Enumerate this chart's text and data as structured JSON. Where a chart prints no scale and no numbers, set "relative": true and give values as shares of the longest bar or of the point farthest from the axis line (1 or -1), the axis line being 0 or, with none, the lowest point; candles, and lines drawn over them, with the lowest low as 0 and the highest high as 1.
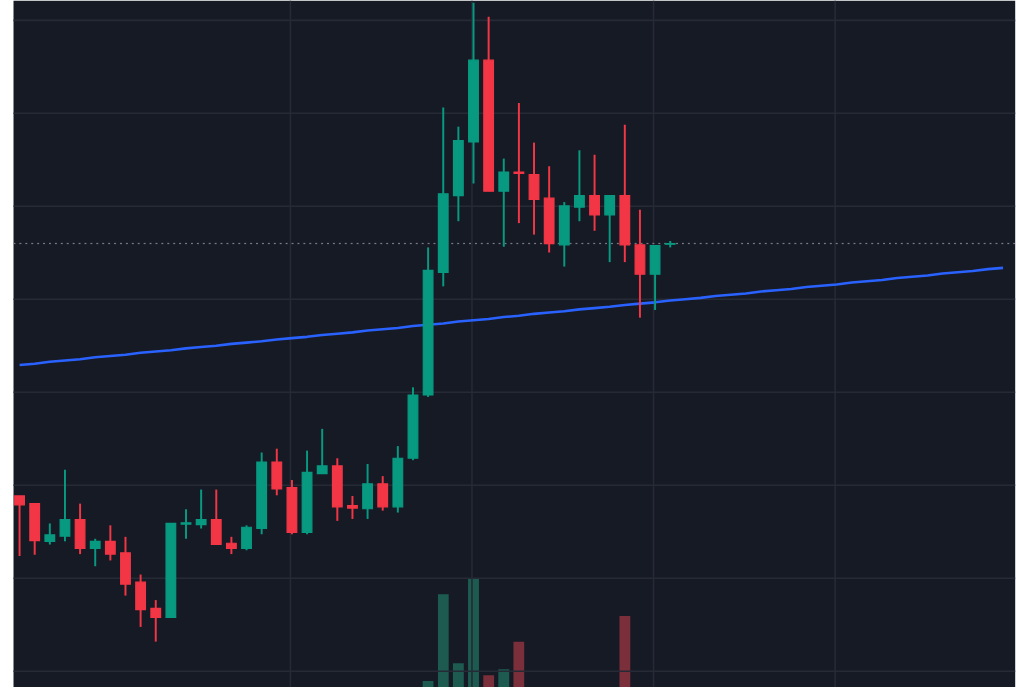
{
  "chart_data": [
    {
      "type": "candlestick",
      "relative": true,
      "grid": true,
      "tick_labels": false,
      "categories": [
        null,
        null,
        null,
        null,
        null,
        null,
        null,
        null,
        null,
        null,
        null,
        null,
        null,
        null,
        null,
        null,
        null,
        null,
        null,
        null,
        null,
        null,
        null,
        null,
        null,
        null,
        null,
        null,
        null,
        null,
        null,
        null,
        null,
        null,
        null,
        null,
        null,
        null,
        null,
        null,
        null,
        null,
        null,
        null,
        null,
        null,
        null,
        null,
        null,
        null,
        null,
        null,
        null,
        null,
        null,
        null,
        null,
        null,
        null,
        null,
        null,
        null,
        null,
        null,
        null,
        null
      ],
      "ohlc": [
        [
          0.228,
          0.228,
          0.134,
          0.214
        ],
        [
          0.216,
          0.216,
          0.136,
          0.158
        ],
        [
          0.157,
          0.185,
          0.152,
          0.167
        ],
        [
          0.165,
          0.269,
          0.157,
          0.191
        ],
        [
          0.191,
          0.216,
          0.137,
          0.146
        ],
        [
          0.146,
          0.161,
          0.118,
          0.157
        ],
        [
          0.157,
          0.182,
          0.127,
          0.137
        ],
        [
          0.139,
          0.164,
          0.072,
          0.09
        ],
        [
          0.093,
          0.105,
          0.023,
          0.05
        ],
        [
          0.052,
          0.065,
          0.0,
          0.038
        ],
        [
          0.038,
          0.185,
          0.038,
          0.185
        ],
        [
          0.184,
          0.207,
          0.161,
          0.186
        ],
        [
          0.183,
          0.238,
          0.177,
          0.191
        ],
        [
          0.191,
          0.238,
          0.152,
          0.152
        ],
        [
          0.154,
          0.164,
          0.137,
          0.146
        ],
        [
          0.146,
          0.182,
          0.143,
          0.179
        ],
        [
          0.177,
          0.296,
          0.168,
          0.281
        ],
        [
          0.281,
          0.302,
          0.229,
          0.239
        ],
        [
          0.241,
          0.253,
          0.168,
          0.171
        ],
        [
          0.171,
          0.299,
          0.168,
          0.265
        ],
        [
          0.263,
          0.333,
          0.263,
          0.275
        ],
        [
          0.275,
          0.287,
          0.189,
          0.211
        ],
        [
          0.213,
          0.228,
          0.192,
          0.209
        ],
        [
          0.208,
          0.278,
          0.192,
          0.247
        ],
        [
          0.247,
          0.259,
          0.205,
          0.211
        ],
        [
          0.211,
          0.306,
          0.202,
          0.287
        ],
        [
          0.287,
          0.398,
          0.284,
          0.386
        ],
        [
          0.386,
          0.617,
          0.383,
          0.581
        ],
        [
          0.578,
          0.836,
          0.556,
          0.701
        ],
        [
          0.698,
          0.806,
          0.658,
          0.784
        ],
        [
          0.782,
          1.0,
          0.717,
          0.91
        ],
        [
          0.91,
          0.978,
          0.705,
          0.705
        ],
        [
          0.705,
          0.756,
          0.618,
          0.735
        ],
        [
          0.735,
          0.843,
          0.655,
          0.733
        ],
        [
          0.731,
          0.781,
          0.637,
          0.692
        ],
        [
          0.694,
          0.744,
          0.609,
          0.623
        ],
        [
          0.621,
          0.688,
          0.587,
          0.682
        ],
        [
          0.68,
          0.769,
          0.658,
          0.698
        ],
        [
          0.698,
          0.762,
          0.643,
          0.668
        ],
        [
          0.668,
          0.698,
          0.594,
          0.698
        ],
        [
          0.698,
          0.809,
          0.594,
          0.621
        ],
        [
          0.621,
          0.676,
          0.507,
          0.575
        ],
        [
          0.575,
          0.62,
          0.519,
          0.62
        ],
        [
          0.622,
          0.627,
          0.617,
          0.623
        ],
        null,
        null,
        null,
        null,
        null,
        null,
        null,
        null,
        null,
        null,
        null,
        null,
        null,
        null,
        null,
        null,
        null,
        null,
        null,
        null,
        null,
        null
      ],
      "colors": [
        "#f23645",
        "#f23645",
        "#089981",
        "#089981",
        "#f23645",
        "#089981",
        "#f23645",
        "#f23645",
        "#f23645",
        "#f23645",
        "#089981",
        "#089981",
        "#089981",
        "#f23645",
        "#f23645",
        "#089981",
        "#089981",
        "#f23645",
        "#f23645",
        "#089981",
        "#089981",
        "#f23645",
        "#f23645",
        "#089981",
        "#f23645",
        "#089981",
        "#089981",
        "#089981",
        "#089981",
        "#089981",
        "#089981",
        "#f23645",
        "#089981",
        "#f23645",
        "#f23645",
        "#f23645",
        "#089981",
        "#089981",
        "#f23645",
        "#089981",
        "#f23645",
        "#f23645",
        "#089981",
        "#089981",
        null,
        null,
        null,
        null,
        null,
        null,
        null,
        null,
        null,
        null,
        null,
        null,
        null,
        null,
        null,
        null,
        null,
        null,
        null,
        null,
        null,
        null
      ],
      "series": [
        {
          "type": "line",
          "color": "#2962ff",
          "values": [
            0.433,
            0.435,
            0.438,
            0.44,
            0.442,
            0.445,
            0.447,
            0.449,
            0.452,
            0.454,
            0.456,
            0.459,
            0.461,
            0.463,
            0.466,
            0.468,
            0.47,
            0.473,
            0.475,
            0.477,
            0.48,
            0.482,
            0.484,
            0.487,
            0.489,
            0.491,
            0.494,
            0.496,
            0.498,
            0.501,
            0.503,
            0.505,
            0.508,
            0.51,
            0.513,
            0.515,
            0.517,
            0.52,
            0.522,
            0.524,
            0.527,
            0.529,
            0.531,
            0.534,
            0.536,
            0.538,
            0.541,
            0.543,
            0.545,
            0.548,
            0.55,
            0.552,
            0.555,
            0.557,
            0.559,
            0.562,
            0.564,
            0.566,
            0.569,
            0.571,
            0.573,
            0.576,
            0.578,
            0.58,
            0.583,
            0.585
          ]
        }
      ],
      "ref_lines": [
        {
          "axis": "y",
          "value": 0.623,
          "color": "#787b86",
          "line_style": "dotted"
        }
      ]
    },
    {
      "type": "bar",
      "relative": true,
      "categories": [
        null,
        null,
        null,
        null,
        null,
        null,
        null,
        null,
        null,
        null,
        null,
        null,
        null,
        null,
        null,
        null,
        null,
        null,
        null,
        null,
        null,
        null,
        null,
        null,
        null,
        null,
        null,
        null,
        null,
        null,
        null,
        null,
        null,
        null,
        null,
        null,
        null,
        null,
        null,
        null,
        null,
        null,
        null,
        null,
        null,
        null,
        null,
        null,
        null,
        null,
        null,
        null,
        null,
        null,
        null,
        null,
        null,
        null,
        null,
        null,
        null,
        null,
        null,
        null,
        null,
        null
      ],
      "values": [
        null,
        null,
        null,
        null,
        null,
        null,
        null,
        null,
        null,
        null,
        null,
        null,
        null,
        null,
        null,
        null,
        null,
        null,
        null,
        null,
        null,
        null,
        null,
        null,
        null,
        null,
        null,
        0.055,
        0.855,
        0.218,
        1.0,
        0.109,
        0.164,
        0.418,
        null,
        null,
        null,
        null,
        null,
        null,
        0.655,
        null,
        null,
        null,
        null,
        null,
        null,
        null,
        null,
        null,
        null,
        null,
        null,
        null,
        null,
        null,
        null,
        null,
        null,
        null,
        null,
        null,
        null,
        null,
        null,
        null
      ],
      "colors": [
        null,
        null,
        null,
        null,
        null,
        null,
        null,
        null,
        null,
        null,
        null,
        null,
        null,
        null,
        null,
        null,
        null,
        null,
        null,
        null,
        null,
        null,
        null,
        null,
        null,
        null,
        null,
        "#1d5b51",
        "#1d5b51",
        "#1d5b51",
        "#1d5b51",
        "#7b2f3a",
        "#1d5b51",
        "#7b2f3a",
        null,
        null,
        null,
        null,
        null,
        null,
        "#7b2f3a",
        null,
        null,
        null,
        null,
        null,
        null,
        null,
        null,
        null,
        null,
        null,
        null,
        null,
        null,
        null,
        null,
        null,
        null,
        null,
        null,
        null,
        null,
        null,
        null,
        null
      ]
    }
  ]
}
